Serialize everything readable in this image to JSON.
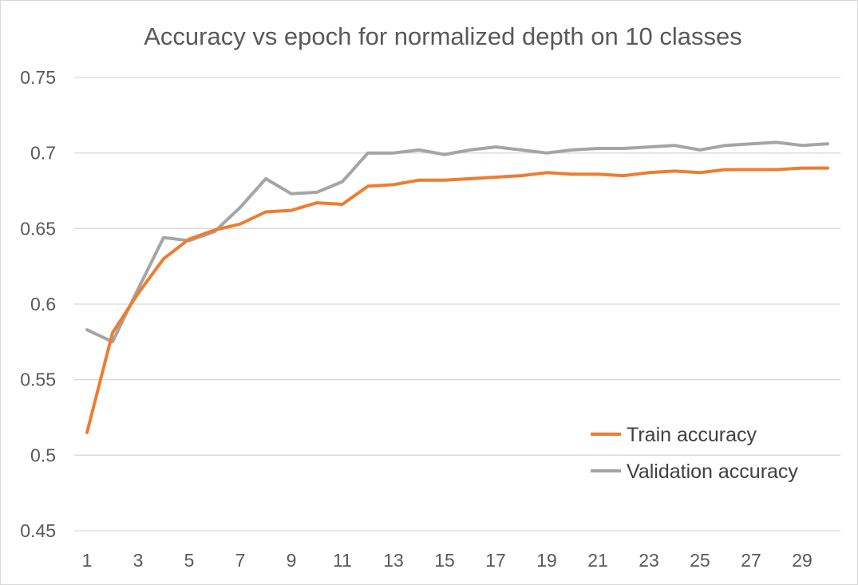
{
  "chart_data": {
    "type": "line",
    "title": "Accuracy vs epoch for normalized depth on 10 classes",
    "xlabel": "",
    "ylabel": "",
    "x": [
      1,
      2,
      3,
      4,
      5,
      6,
      7,
      8,
      9,
      10,
      11,
      12,
      13,
      14,
      15,
      16,
      17,
      18,
      19,
      20,
      21,
      22,
      23,
      24,
      25,
      26,
      27,
      28,
      29,
      30
    ],
    "x_tick_labels": [
      "1",
      "3",
      "5",
      "7",
      "9",
      "11",
      "13",
      "15",
      "17",
      "19",
      "21",
      "23",
      "25",
      "27",
      "29"
    ],
    "y_tick_labels": [
      "0.45",
      "0.5",
      "0.55",
      "0.6",
      "0.65",
      "0.7",
      "0.75"
    ],
    "ylim": [
      0.45,
      0.75
    ],
    "grid": "horizontal",
    "legend_position": "bottom-right",
    "series": [
      {
        "name": "Train accuracy",
        "color": "#ED7D31",
        "values": [
          0.515,
          0.581,
          0.607,
          0.63,
          0.643,
          0.649,
          0.653,
          0.661,
          0.662,
          0.667,
          0.666,
          0.678,
          0.679,
          0.682,
          0.682,
          0.683,
          0.684,
          0.685,
          0.687,
          0.686,
          0.686,
          0.685,
          0.687,
          0.688,
          0.687,
          0.689,
          0.689,
          0.689,
          0.69,
          0.69
        ]
      },
      {
        "name": "Validation accuracy",
        "color": "#A5A5A5",
        "values": [
          0.583,
          0.575,
          0.61,
          0.644,
          0.642,
          0.648,
          0.664,
          0.683,
          0.673,
          0.674,
          0.681,
          0.7,
          0.7,
          0.702,
          0.699,
          0.702,
          0.704,
          0.702,
          0.7,
          0.702,
          0.703,
          0.703,
          0.704,
          0.705,
          0.702,
          0.705,
          0.706,
          0.707,
          0.705,
          0.706
        ]
      }
    ]
  }
}
